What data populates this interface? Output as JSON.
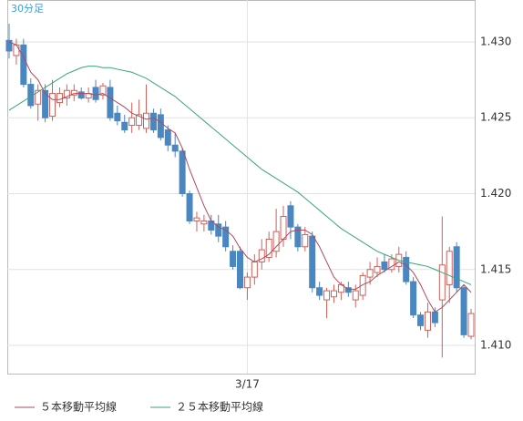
{
  "chart_data": {
    "type": "candlestick",
    "subtitle": "30分足",
    "categories": [
      null,
      null,
      null,
      null,
      null,
      null,
      null,
      null,
      null,
      null,
      null,
      null,
      null,
      null,
      null,
      null,
      null,
      null,
      null,
      null,
      null,
      null,
      null,
      null,
      null,
      null,
      null,
      null,
      null,
      null,
      null,
      null,
      null,
      "3/17",
      null,
      null,
      null,
      null,
      null,
      null,
      null,
      null,
      null,
      null,
      null,
      null,
      null,
      null,
      null,
      null,
      null,
      null,
      null,
      null,
      null,
      null,
      null,
      null,
      null,
      null,
      null,
      null,
      null,
      null,
      null
    ],
    "open": [
      1.4301,
      1.4291,
      1.4298,
      1.4272,
      1.4259,
      1.4268,
      1.4251,
      1.426,
      1.4263,
      1.4265,
      1.4267,
      1.4263,
      1.427,
      1.4265,
      1.427,
      1.4253,
      1.4247,
      1.4245,
      1.4245,
      1.4243,
      1.4253,
      1.4252,
      1.4242,
      1.4232,
      1.4228,
      1.42,
      1.4182,
      1.418,
      1.4182,
      1.418,
      1.4178,
      1.4162,
      1.4162,
      1.4138,
      1.4145,
      1.4155,
      1.4158,
      1.4162,
      1.417,
      1.4192,
      1.4178,
      1.4165,
      1.4172,
      1.4138,
      1.413,
      1.4132,
      1.4135,
      1.4138,
      1.413,
      1.4133,
      1.4145,
      1.4148,
      1.4155,
      1.415,
      1.4152,
      1.4158,
      1.4142,
      1.412,
      1.411,
      1.4122,
      1.413,
      1.414,
      1.4165,
      1.4138,
      1.4106
    ],
    "high": [
      1.4312,
      1.4302,
      1.4302,
      1.4276,
      1.4272,
      1.4272,
      1.4275,
      1.427,
      1.4272,
      1.4272,
      1.427,
      1.427,
      1.4275,
      1.4273,
      1.4275,
      1.4258,
      1.4252,
      1.426,
      1.4262,
      1.4272,
      1.4256,
      1.4256,
      1.4245,
      1.424,
      1.423,
      1.4202,
      1.4188,
      1.4186,
      1.4186,
      1.4186,
      1.4182,
      1.4166,
      1.4165,
      1.4148,
      1.416,
      1.417,
      1.4175,
      1.419,
      1.4192,
      1.4195,
      1.418,
      1.4178,
      1.4175,
      1.4142,
      1.4138,
      1.414,
      1.4142,
      1.4142,
      1.414,
      1.4148,
      1.4155,
      1.4158,
      1.416,
      1.416,
      1.4165,
      1.4162,
      1.4145,
      1.4122,
      1.4128,
      1.4125,
      1.4185,
      1.4165,
      1.4168,
      1.414,
      1.4124
    ],
    "low": [
      1.4289,
      1.4285,
      1.427,
      1.4256,
      1.4248,
      1.4247,
      1.4248,
      1.4257,
      1.4258,
      1.4261,
      1.4262,
      1.426,
      1.426,
      1.4262,
      1.4248,
      1.4245,
      1.424,
      1.424,
      1.4242,
      1.424,
      1.424,
      1.4235,
      1.4228,
      1.4224,
      1.4198,
      1.418,
      1.4175,
      1.4175,
      1.4173,
      1.4168,
      1.4162,
      1.415,
      1.4137,
      1.413,
      1.414,
      1.415,
      1.4155,
      1.4158,
      1.4165,
      1.417,
      1.4162,
      1.4162,
      1.4135,
      1.413,
      1.4118,
      1.4128,
      1.413,
      1.4132,
      1.4125,
      1.413,
      1.414,
      1.4145,
      1.4148,
      1.4148,
      1.4148,
      1.414,
      1.4118,
      1.411,
      1.4105,
      1.4112,
      1.4092,
      1.4128,
      1.4135,
      1.4105,
      1.4104
    ],
    "close": [
      1.4294,
      1.4298,
      1.4272,
      1.4258,
      1.4268,
      1.425,
      1.4266,
      1.4266,
      1.4268,
      1.4268,
      1.4263,
      1.4266,
      1.4262,
      1.4271,
      1.425,
      1.4248,
      1.4242,
      1.425,
      1.4252,
      1.4253,
      1.4242,
      1.4237,
      1.4232,
      1.4228,
      1.42,
      1.4182,
      1.4184,
      1.4182,
      1.4176,
      1.4172,
      1.4165,
      1.4152,
      1.4138,
      1.4145,
      1.4155,
      1.4163,
      1.417,
      1.4175,
      1.4185,
      1.4178,
      1.4165,
      1.4173,
      1.4138,
      1.4133,
      1.4136,
      1.4136,
      1.414,
      1.4135,
      1.4136,
      1.4146,
      1.415,
      1.4152,
      1.415,
      1.4157,
      1.416,
      1.4142,
      1.412,
      1.4113,
      1.4122,
      1.4115,
      1.4153,
      1.4162,
      1.4138,
      1.4107,
      1.4121
    ],
    "up_color": "#d0605a",
    "down_color": "#4a86c0",
    "series": [
      {
        "name": "５本移動平均線",
        "color": "#b04a5a",
        "values": [
          1.43,
          1.4298,
          1.429,
          1.428,
          1.4275,
          1.4266,
          1.4262,
          1.4262,
          1.4264,
          1.4266,
          1.4266,
          1.4266,
          1.4265,
          1.4266,
          1.4263,
          1.426,
          1.4257,
          1.4253,
          1.4251,
          1.4249,
          1.425,
          1.4247,
          1.4243,
          1.424,
          1.423,
          1.4216,
          1.4204,
          1.4192,
          1.4182,
          1.4178,
          1.4176,
          1.4172,
          1.4164,
          1.4158,
          1.4155,
          1.4157,
          1.416,
          1.4165,
          1.417,
          1.4175,
          1.4176,
          1.4176,
          1.4173,
          1.4165,
          1.4155,
          1.4145,
          1.414,
          1.4137,
          1.4137,
          1.414,
          1.4142,
          1.4146,
          1.4149,
          1.4152,
          1.4155,
          1.4153,
          1.4148,
          1.414,
          1.413,
          1.4122,
          1.4125,
          1.413,
          1.4135,
          1.414,
          1.4135
        ]
      },
      {
        "name": "２５本移動平均線",
        "color": "#3aa57a",
        "values": [
          1.4255,
          1.4258,
          1.4261,
          1.4264,
          1.4267,
          1.427,
          1.4273,
          1.4276,
          1.4279,
          1.4281,
          1.4283,
          1.4284,
          1.4284,
          1.4283,
          1.4283,
          1.4282,
          1.4281,
          1.428,
          1.4278,
          1.4276,
          1.4273,
          1.427,
          1.4267,
          1.4264,
          1.426,
          1.4256,
          1.4252,
          1.4248,
          1.4244,
          1.424,
          1.4236,
          1.4232,
          1.4228,
          1.4224,
          1.422,
          1.4216,
          1.4213,
          1.421,
          1.4207,
          1.4204,
          1.4201,
          1.4197,
          1.4193,
          1.4189,
          1.4185,
          1.4181,
          1.4177,
          1.4174,
          1.4171,
          1.4168,
          1.4165,
          1.4162,
          1.416,
          1.4158,
          1.4156,
          1.4155,
          1.4154,
          1.4153,
          1.4152,
          1.415,
          1.4148,
          1.4146,
          1.4144,
          1.4142,
          1.414
        ]
      }
    ],
    "ylim": [
      1.40814,
      1.43276
    ],
    "yticks": [
      {
        "value": 1.41,
        "label": "1.410"
      },
      1.415,
      {
        "value": 1.42,
        "label": "1.420"
      },
      1.425,
      {
        "value": 1.43,
        "label": "1.430"
      }
    ],
    "grid": true
  }
}
